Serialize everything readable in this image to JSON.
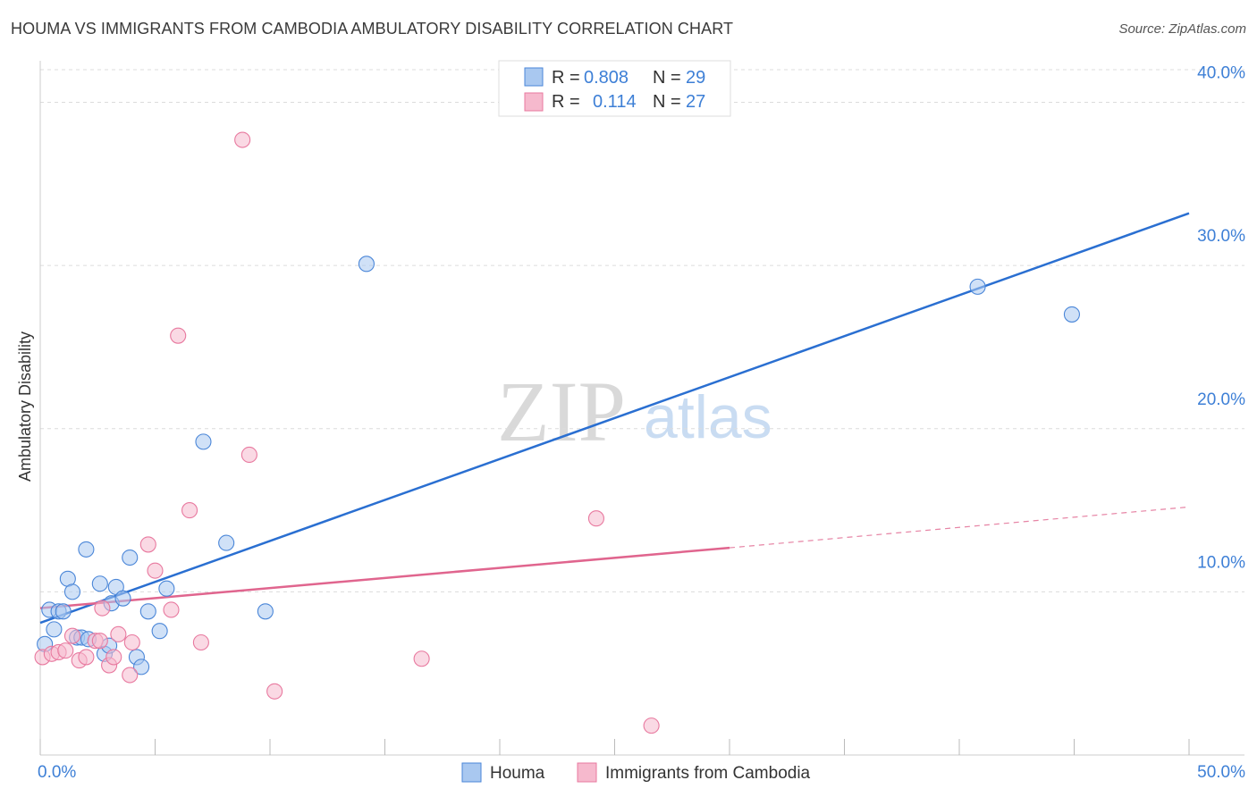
{
  "title": "HOUMA VS IMMIGRANTS FROM CAMBODIA AMBULATORY DISABILITY CORRELATION CHART",
  "source": "Source: ZipAtlas.com",
  "watermark": {
    "part1": "ZIP",
    "part2": "atlas"
  },
  "colors": {
    "blue_fill": "#a9c8f0",
    "blue_stroke": "#4a86d8",
    "blue_line": "#2a6fd1",
    "pink_fill": "#f6b9cd",
    "pink_stroke": "#e8799f",
    "pink_line": "#e0658e",
    "grid": "#dcdcdc",
    "label": "#3d7fd6"
  },
  "legend": {
    "rows": [
      {
        "r_label": "R =",
        "r_value": "0.808",
        "n_label": "N =",
        "n_value": "29"
      },
      {
        "r_label": "R =",
        "r_value": "0.114",
        "n_label": "N =",
        "n_value": "27"
      }
    ]
  },
  "chart_data": {
    "type": "scatter",
    "ylabel": "Ambulatory Disability",
    "xlabel": "",
    "xlim": [
      0,
      50
    ],
    "ylim": [
      0,
      42
    ],
    "x_tick_labels": [
      "0.0%",
      "50.0%"
    ],
    "y_ticks": [
      10,
      20,
      30,
      40
    ],
    "y_tick_labels": [
      "10.0%",
      "20.0%",
      "30.0%",
      "40.0%"
    ],
    "series": [
      {
        "name": "Houma",
        "color": "blue",
        "points": [
          [
            0.2,
            6.8
          ],
          [
            0.4,
            8.9
          ],
          [
            0.6,
            7.7
          ],
          [
            0.8,
            8.8
          ],
          [
            1.0,
            8.8
          ],
          [
            1.2,
            10.8
          ],
          [
            1.4,
            10.0
          ],
          [
            1.6,
            7.2
          ],
          [
            1.8,
            7.2
          ],
          [
            2.0,
            12.6
          ],
          [
            2.1,
            7.1
          ],
          [
            2.6,
            10.5
          ],
          [
            2.8,
            6.2
          ],
          [
            3.0,
            6.7
          ],
          [
            3.1,
            9.3
          ],
          [
            3.3,
            10.3
          ],
          [
            3.6,
            9.6
          ],
          [
            3.9,
            12.1
          ],
          [
            4.2,
            6.0
          ],
          [
            4.4,
            5.4
          ],
          [
            4.7,
            8.8
          ],
          [
            5.2,
            7.6
          ],
          [
            5.5,
            10.2
          ],
          [
            7.1,
            19.2
          ],
          [
            8.1,
            13.0
          ],
          [
            9.8,
            8.8
          ],
          [
            14.2,
            30.1
          ],
          [
            40.8,
            28.7
          ],
          [
            44.9,
            27.0
          ]
        ],
        "trend": {
          "x": [
            0,
            50
          ],
          "y": [
            8.1,
            33.2
          ],
          "style": "solid"
        }
      },
      {
        "name": "Immigrants from Cambodia",
        "color": "pink",
        "points": [
          [
            0.1,
            6.0
          ],
          [
            0.5,
            6.2
          ],
          [
            0.8,
            6.3
          ],
          [
            1.1,
            6.4
          ],
          [
            1.4,
            7.3
          ],
          [
            1.7,
            5.8
          ],
          [
            2.0,
            6.0
          ],
          [
            2.4,
            7.0
          ],
          [
            2.6,
            7.0
          ],
          [
            2.7,
            9.0
          ],
          [
            3.0,
            5.5
          ],
          [
            3.2,
            6.0
          ],
          [
            3.4,
            7.4
          ],
          [
            3.9,
            4.9
          ],
          [
            4.0,
            6.9
          ],
          [
            4.7,
            12.9
          ],
          [
            5.0,
            11.3
          ],
          [
            5.7,
            8.9
          ],
          [
            6.0,
            25.7
          ],
          [
            6.5,
            15.0
          ],
          [
            7.0,
            6.9
          ],
          [
            8.8,
            37.7
          ],
          [
            9.1,
            18.4
          ],
          [
            10.2,
            3.9
          ],
          [
            16.6,
            5.9
          ],
          [
            24.2,
            14.5
          ],
          [
            26.6,
            1.8
          ]
        ],
        "trend": {
          "x": [
            0,
            30
          ],
          "y": [
            9.0,
            12.7
          ],
          "style": "solid"
        },
        "trend_extension": {
          "x": [
            30,
            50
          ],
          "y": [
            12.7,
            15.2
          ],
          "style": "dashed"
        }
      }
    ],
    "legend_entries": [
      "Houma",
      "Immigrants from Cambodia"
    ],
    "legend_position": "bottom-center"
  }
}
